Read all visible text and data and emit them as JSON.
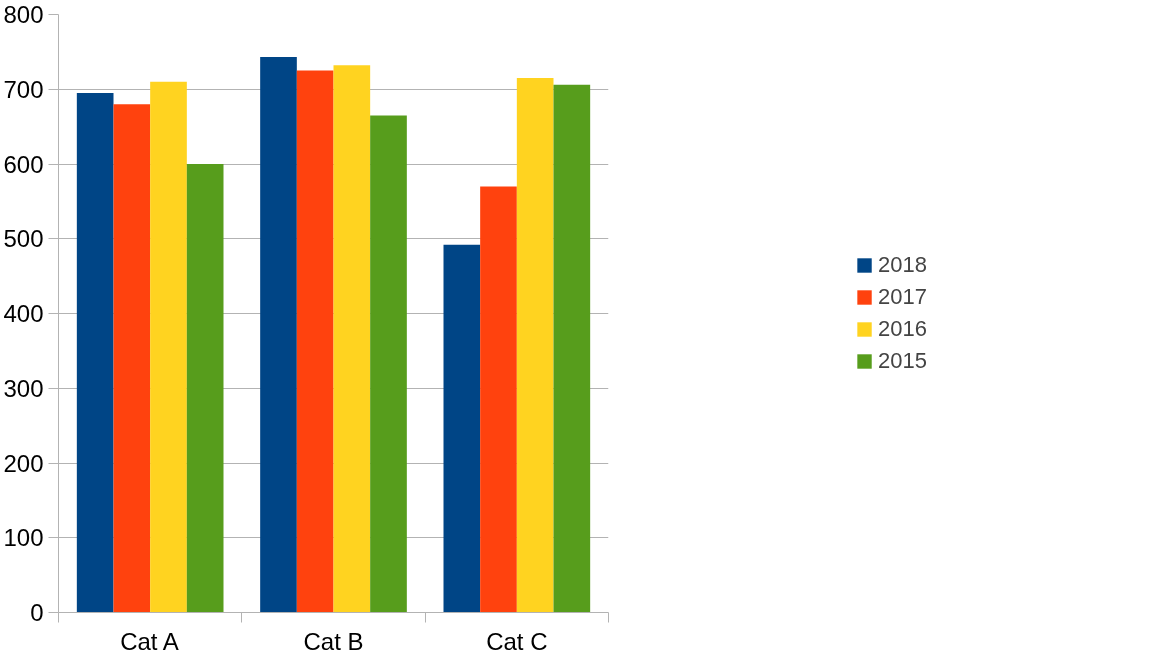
{
  "chart_data": {
    "type": "bar",
    "categories": [
      "Cat A",
      "Cat B",
      "Cat C"
    ],
    "series": [
      {
        "name": "2018",
        "color": "#004586",
        "values": [
          695,
          743,
          492
        ]
      },
      {
        "name": "2017",
        "color": "#ff420e",
        "values": [
          680,
          725,
          570
        ]
      },
      {
        "name": "2016",
        "color": "#ffd320",
        "values": [
          710,
          732,
          715
        ]
      },
      {
        "name": "2015",
        "color": "#579d1c",
        "values": [
          600,
          665,
          706
        ]
      }
    ],
    "ylim": [
      0,
      800
    ],
    "yticks": [
      0,
      100,
      200,
      300,
      400,
      500,
      600,
      700,
      800
    ],
    "grid": "y",
    "legend": "right"
  }
}
